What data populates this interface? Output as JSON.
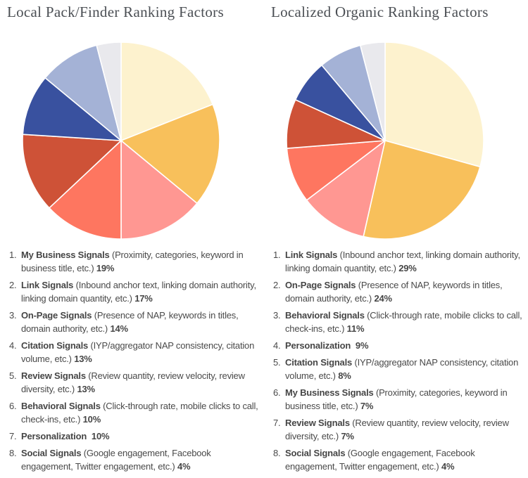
{
  "chart_data": [
    {
      "type": "pie",
      "title": "Local Pack/Finder Ranking Factors",
      "start_angle_deg": -90,
      "direction": "clockwise",
      "legend_position": "bottom",
      "slices": [
        {
          "rank": 1,
          "label": "My Business Signals",
          "description": "(Proximity, categories, keyword in business title, etc.)",
          "value_pct": 19,
          "color": "#FDF2CE"
        },
        {
          "rank": 2,
          "label": "Link Signals",
          "description": "(Inbound anchor text, linking domain authority, linking domain quantity, etc.)",
          "value_pct": 17,
          "color": "#F8C05B"
        },
        {
          "rank": 3,
          "label": "On-Page Signals",
          "description": "(Presence of NAP, keywords in titles, domain authority, etc.)",
          "value_pct": 14,
          "color": "#FF9792"
        },
        {
          "rank": 4,
          "label": "Citation Signals",
          "description": "(IYP/aggregator NAP consistency, citation volume, etc.)",
          "value_pct": 13,
          "color": "#FE7660"
        },
        {
          "rank": 5,
          "label": "Review Signals",
          "description": "(Review quantity, review velocity, review diversity, etc.)",
          "value_pct": 13,
          "color": "#CE5237"
        },
        {
          "rank": 6,
          "label": "Behavioral Signals",
          "description": "(Click-through rate, mobile clicks to call, check-ins, etc.)",
          "value_pct": 10,
          "color": "#39519F"
        },
        {
          "rank": 7,
          "label": "Personalization",
          "description": "",
          "value_pct": 10,
          "color": "#A4B2D6"
        },
        {
          "rank": 8,
          "label": "Social Signals",
          "description": "(Google engagement, Facebook engagement, Twitter engagement, etc.)",
          "value_pct": 4,
          "color": "#E9E9ED"
        }
      ]
    },
    {
      "type": "pie",
      "title": "Localized Organic Ranking Factors",
      "start_angle_deg": -90,
      "direction": "clockwise",
      "legend_position": "bottom",
      "slices": [
        {
          "rank": 1,
          "label": "Link Signals",
          "description": "(Inbound anchor text, linking domain authority, linking domain quantity, etc.)",
          "value_pct": 29,
          "color": "#FDF2CE"
        },
        {
          "rank": 2,
          "label": "On-Page Signals",
          "description": "(Presence of NAP, keywords in titles, domain authority, etc.)",
          "value_pct": 24,
          "color": "#F8C05B"
        },
        {
          "rank": 3,
          "label": "Behavioral Signals",
          "description": "(Click-through rate, mobile clicks to call, check-ins, etc.)",
          "value_pct": 11,
          "color": "#FF9792"
        },
        {
          "rank": 4,
          "label": "Personalization",
          "description": "",
          "value_pct": 9,
          "color": "#FE7660"
        },
        {
          "rank": 5,
          "label": "Citation Signals",
          "description": "(IYP/aggregator NAP consistency, citation volume, etc.)",
          "value_pct": 8,
          "color": "#CE5237"
        },
        {
          "rank": 6,
          "label": "My Business Signals",
          "description": "(Proximity, categories, keyword in business title, etc.)",
          "value_pct": 7,
          "color": "#39519F"
        },
        {
          "rank": 7,
          "label": "Review Signals",
          "description": "(Review quantity, review velocity, review diversity, etc.)",
          "value_pct": 7,
          "color": "#A4B2D6"
        },
        {
          "rank": 8,
          "label": "Social Signals",
          "description": "(Google engagement, Facebook engagement, Twitter engagement, etc.)",
          "value_pct": 4,
          "color": "#E9E9ED"
        }
      ]
    }
  ],
  "style": {
    "slice_border_color": "#FFFFFF",
    "title_color": "#4B4F54",
    "legend_text_color": "#4A4A4A",
    "background_color": "#FFFFFF"
  }
}
